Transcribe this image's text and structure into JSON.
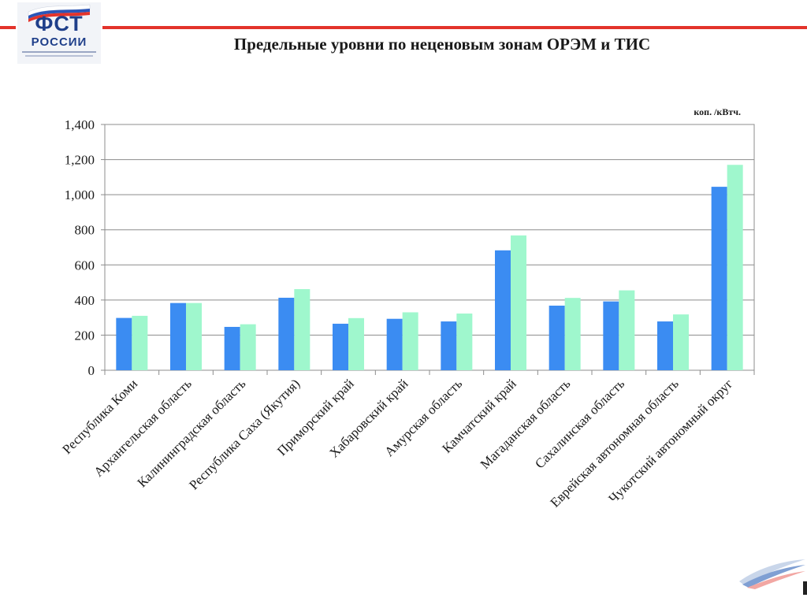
{
  "slide": {
    "title": "Предельные уровни по неценовым зонам ОРЭМ и ТИС",
    "logo": {
      "line1": "ФСТ",
      "line2": "РОССИИ"
    }
  },
  "colors": {
    "accent_red": "#e3332b",
    "series1": "#3b8cf2",
    "series2": "#9ff7cd",
    "logo_blue": "#1f3f8a"
  },
  "chart_data": {
    "type": "bar",
    "title": "",
    "unit_label": "коп. /кВтч.",
    "xlabel": "",
    "ylabel": "",
    "ylim": [
      0,
      1400
    ],
    "yticks": [
      "0",
      "200",
      "400",
      "600",
      "800",
      "1,000",
      "1,200",
      "1,400"
    ],
    "ytick_values": [
      0,
      200,
      400,
      600,
      800,
      1000,
      1200,
      1400
    ],
    "grid": true,
    "legend": "none",
    "categories": [
      "Республика Коми",
      "Архангельская область",
      "Калининградская область",
      "Республика Саха (Якутия)",
      "Приморский край",
      "Хабаровский край",
      "Амурская область",
      "Камчатский край",
      "Магаданская область",
      "Сахалинская область",
      "Еврейская автономная область",
      "Чукотский автономный округ"
    ],
    "series": [
      {
        "values": [
          298,
          383,
          247,
          413,
          265,
          293,
          278,
          683,
          368,
          392,
          278,
          1045
        ]
      },
      {
        "values": [
          310,
          383,
          262,
          462,
          297,
          330,
          323,
          768,
          412,
          455,
          318,
          1170
        ]
      }
    ]
  }
}
